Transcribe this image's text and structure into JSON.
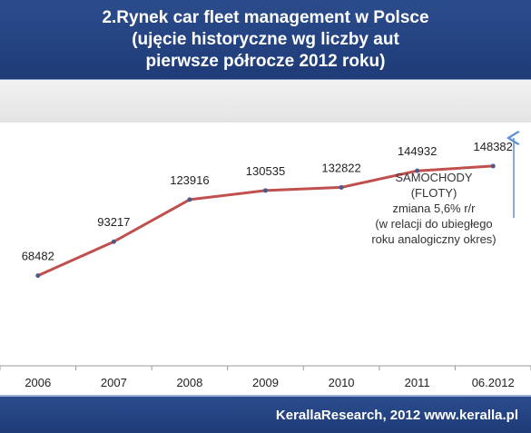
{
  "header": {
    "line1": "2.Rynek car fleet management w Polsce",
    "line2": "(ujęcie historyczne wg liczby aut",
    "line3": "pierwsze półrocze 2012 roku)"
  },
  "footer": {
    "credit": "KerallaResearch, 2012 www.keralla.pl"
  },
  "annotation": {
    "lines": [
      "SAMOCHODY",
      "(FLOTY)",
      "zmiana 5,6%  r/r",
      "(w relacji do ubiegłego",
      "roku analogiczny okres)"
    ]
  },
  "colors": {
    "header_bg": "#2b4c8c",
    "line": "#c0504d",
    "point": "#4a5a8a",
    "arrow": "#5b8fd6"
  },
  "chart_data": {
    "type": "line",
    "categories": [
      "2006",
      "2007",
      "2008",
      "2009",
      "2010",
      "2011",
      "06.2012"
    ],
    "series": [
      {
        "values": [
          68482,
          93217,
          123916,
          130535,
          132822,
          144932,
          148382
        ]
      }
    ],
    "data_labels": [
      "68482",
      "93217",
      "123916",
      "130535",
      "132822",
      "144932",
      "148382"
    ],
    "ylim": [
      0,
      200000
    ],
    "grid": false,
    "legend": "none"
  }
}
